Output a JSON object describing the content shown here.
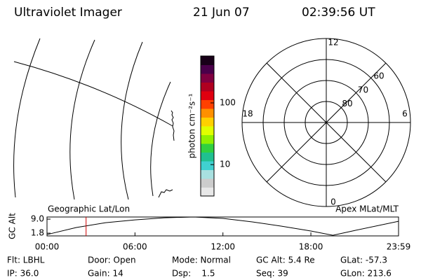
{
  "header": {
    "title": "Ultraviolet Imager",
    "date": "21 Jun 07",
    "time": "02:39:56 UT"
  },
  "colorbar": {
    "label": "photon cm⁻²s⁻¹",
    "log": true,
    "lim": [
      3.1,
      575
    ],
    "ticks": [
      10,
      100
    ],
    "colors": [
      "#e8e8e8",
      "#cccccc",
      "#a8e0e0",
      "#40d0d0",
      "#20c090",
      "#30d040",
      "#90f000",
      "#e0ff00",
      "#ffd000",
      "#ff9000",
      "#ff4000",
      "#e00010",
      "#b00020",
      "#800040",
      "#4a004a",
      "#180018"
    ]
  },
  "polar": {
    "rlim": [
      90,
      50
    ],
    "lat_ticks": [
      80,
      70,
      60
    ],
    "mlt_ticks": [
      12,
      18,
      6,
      0
    ]
  },
  "chart_data": {
    "type": "line",
    "y_label": "GC Alt",
    "left_label": "Geographic Lat/Lon",
    "right_label": "Apex MLat/MLT",
    "x": [
      0,
      2,
      4,
      6,
      8,
      10,
      12,
      14,
      16,
      18,
      19.5,
      21,
      23.98
    ],
    "series": [
      {
        "color": "#000000",
        "values": [
          1.1,
          4.7,
          7.2,
          8.6,
          9.7,
          10.1,
          9.4,
          7.6,
          5.4,
          2.9,
          0.7,
          3.2,
          7.9
        ]
      }
    ],
    "xlim": [
      0,
      23.98
    ],
    "xticks": [
      {
        "value": 0,
        "label": "00:00"
      },
      {
        "value": 6,
        "label": "06:00"
      },
      {
        "value": 12,
        "label": "12:00"
      },
      {
        "value": 18,
        "label": "18:00"
      },
      {
        "value": 23.98,
        "label": "23:59"
      }
    ],
    "ylim": [
      0.4,
      10.1
    ],
    "yticks": [
      {
        "value": 9,
        "label": "9.0"
      },
      {
        "value": 1.8,
        "label": "1.8"
      }
    ],
    "current_time": 2.665,
    "current_time_color": "#d00000"
  },
  "footer": {
    "rows": [
      [
        "Flt: LBHL",
        "Door: Open",
        "Mode: Normal",
        "GC Alt: 5.4 Re",
        "GLat: -57.3"
      ],
      [
        "IP: 36.0",
        "Gain: 14",
        "Dsp:    1.5",
        "Seq: 39",
        "GLon: 213.6"
      ]
    ]
  }
}
